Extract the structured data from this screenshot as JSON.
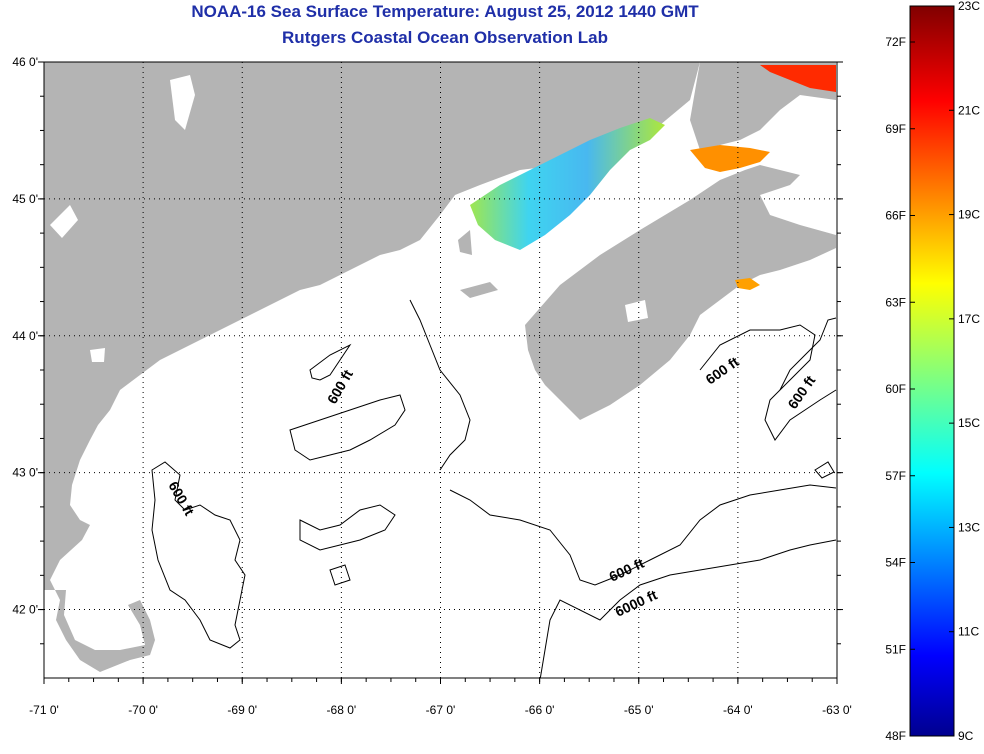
{
  "header": {
    "title": "NOAA-16 Sea Surface Temperature:  August 25, 2012 1440 GMT",
    "subtitle": "Rutgers Coastal Ocean Observation Lab"
  },
  "map": {
    "longitude_ticks": [
      "-71 0'",
      "-70 0'",
      "-69 0'",
      "-68 0'",
      "-67 0'",
      "-66 0'",
      "-65 0'",
      "-64 0'",
      "-63 0'"
    ],
    "latitude_ticks": [
      "46 0'",
      "45 0'",
      "44 0'",
      "43 0'",
      "42 0'"
    ],
    "extent": {
      "lon": [
        -71,
        -63
      ],
      "lat": [
        41.5,
        46
      ]
    },
    "contour_labels": [
      "600 ft",
      "600 ft",
      "600 ft",
      "600 ft",
      "600 ft",
      "6000 ft"
    ],
    "colors": {
      "land": "#b4b4b4",
      "ocean": "#ffffff",
      "grid": "#000000"
    }
  },
  "colorbar": {
    "fahrenheit_labels": [
      "72F",
      "69F",
      "66F",
      "63F",
      "60F",
      "57F",
      "54F",
      "51F",
      "48F"
    ],
    "celsius_labels": [
      "23C",
      "21C",
      "19C",
      "17C",
      "15C",
      "13C",
      "11C",
      "9C"
    ],
    "range_c": [
      9,
      23
    ],
    "colormap": "jet"
  }
}
